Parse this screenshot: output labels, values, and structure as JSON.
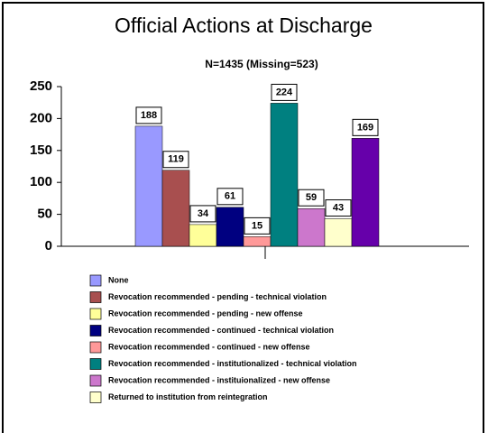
{
  "chart_data": {
    "type": "bar",
    "title": "Official Actions at Discharge",
    "subtitle": "N=1435 (Missing=523)",
    "categories": [
      null
    ],
    "ylim": [
      0,
      250
    ],
    "yticks": [
      0,
      50,
      100,
      150,
      200,
      250
    ],
    "grid": false,
    "data_labels": true,
    "legend": "bottom",
    "series": [
      {
        "name": "None",
        "color": "#9999ff",
        "values": [
          188
        ]
      },
      {
        "name": "Revocation recommended - pending - technical violation",
        "color": "#a84f4f",
        "values": [
          119
        ]
      },
      {
        "name": "Revocation recommended - pending - new offense",
        "color": "#ffff99",
        "values": [
          34
        ]
      },
      {
        "name": "Revocation recommended - continued - technical violation",
        "color": "#000080",
        "values": [
          61
        ]
      },
      {
        "name": "Revocation recommended - continued - new offense",
        "color": "#ff9999",
        "values": [
          15
        ]
      },
      {
        "name": "Revocation recommended - institutionalized - technical violation",
        "color": "#008080",
        "values": [
          224
        ]
      },
      {
        "name": "Revocation recommended - instituionalized - new offense",
        "color": "#cc77cc",
        "values": [
          59
        ]
      },
      {
        "name": "Returned to institution from reintegration",
        "color": "#ffffcc",
        "values": [
          43
        ]
      },
      {
        "color": "#6600aa",
        "values": [
          169
        ]
      }
    ]
  }
}
